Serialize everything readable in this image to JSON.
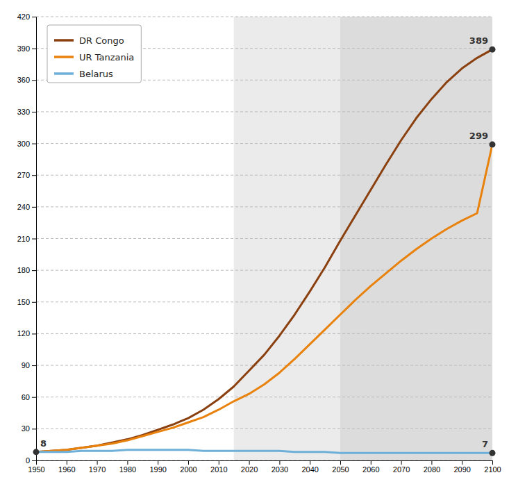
{
  "chart_data": {
    "type": "line",
    "x": [
      1950,
      1955,
      1960,
      1965,
      1970,
      1975,
      1980,
      1985,
      1990,
      1995,
      2000,
      2005,
      2010,
      2015,
      2020,
      2025,
      2030,
      2035,
      2040,
      2045,
      2050,
      2055,
      2060,
      2065,
      2070,
      2075,
      2080,
      2085,
      2090,
      2095,
      2100
    ],
    "series": [
      {
        "name": "DR Congo",
        "color": "#8B4010",
        "values": [
          8,
          9,
          10,
          12,
          14,
          17,
          20,
          24,
          29,
          34,
          40,
          48,
          58,
          70,
          85,
          100,
          118,
          138,
          160,
          183,
          208,
          232,
          256,
          280,
          303,
          324,
          342,
          358,
          371,
          381,
          389
        ]
      },
      {
        "name": "UR Tanzania",
        "color": "#E8820C",
        "values": [
          8,
          9,
          10,
          12,
          14,
          16,
          19,
          23,
          27,
          31,
          36,
          41,
          48,
          56,
          63,
          72,
          83,
          96,
          110,
          124,
          138,
          152,
          165,
          177,
          189,
          200,
          210,
          219,
          227,
          234,
          299
        ]
      },
      {
        "name": "Belarus",
        "color": "#6EB0D8",
        "values": [
          8,
          8,
          8,
          9,
          9,
          9,
          10,
          10,
          10,
          10,
          10,
          9,
          9,
          9,
          9,
          9,
          9,
          8,
          8,
          8,
          7,
          7,
          7,
          7,
          7,
          7,
          7,
          7,
          7,
          7,
          7
        ]
      }
    ],
    "xlim": [
      1950,
      2100
    ],
    "ylim": [
      0,
      420
    ],
    "xticks": [
      1950,
      1960,
      1970,
      1980,
      1990,
      2000,
      2010,
      2020,
      2030,
      2040,
      2050,
      2060,
      2070,
      2080,
      2090,
      2100
    ],
    "yticks": [
      0,
      30,
      60,
      90,
      120,
      150,
      180,
      210,
      240,
      270,
      300,
      330,
      360,
      390,
      420
    ],
    "regions": [
      {
        "start": 2015,
        "end": 2050,
        "color": "#EBEBEB"
      },
      {
        "start": 2050,
        "end": 2100,
        "color": "#DCDCDC"
      }
    ],
    "annotations": [
      {
        "text": "8",
        "x": 1950,
        "y": 8
      },
      {
        "text": "389",
        "x": 2100,
        "y": 389
      },
      {
        "text": "299",
        "x": 2100,
        "y": 299
      },
      {
        "text": "7",
        "x": 2100,
        "y": 7
      }
    ],
    "grid": true,
    "legend": "upper left"
  }
}
